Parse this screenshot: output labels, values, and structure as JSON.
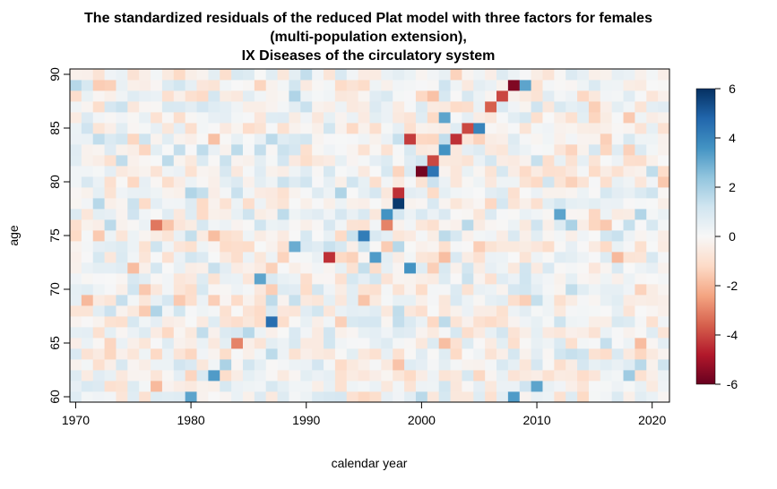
{
  "chart_data": {
    "type": "heatmap",
    "title_lines": [
      "The standardized residuals of the reduced Plat model with three factors for females",
      "(multi-population extension),",
      "IX Diseases of the circulatory system"
    ],
    "xlabel": "calendar year",
    "ylabel": "age",
    "x_range": [
      1970,
      2021
    ],
    "y_range": [
      60,
      90
    ],
    "xlim": [
      1969.5,
      2021.5
    ],
    "ylim": [
      59.5,
      90.5
    ],
    "x_ticks": [
      1970,
      1980,
      1990,
      2000,
      2010,
      2020
    ],
    "y_ticks": [
      60,
      65,
      70,
      75,
      80,
      85,
      90
    ],
    "x_tick_labels": [
      "1970",
      "1980",
      "1990",
      "2000",
      "2010",
      "2020"
    ],
    "y_tick_labels": [
      "60",
      "65",
      "70",
      "75",
      "80",
      "85",
      "90"
    ],
    "colorbar": {
      "range": [
        -6,
        6
      ],
      "ticks": [
        6,
        4,
        2,
        0,
        -2,
        -4,
        -6
      ],
      "tick_labels": [
        "6",
        "4",
        "2",
        "0",
        "-2",
        "-4",
        "-6"
      ],
      "palette": "RdBu (red = negative, blue = positive)"
    },
    "grid": false,
    "notable_cells": [
      {
        "year": 1987,
        "age": 67,
        "value": 4.6
      },
      {
        "year": 1986,
        "age": 71,
        "value": 3.2
      },
      {
        "year": 1989,
        "age": 74,
        "value": 3.0
      },
      {
        "year": 1992,
        "age": 73,
        "value": -4.4
      },
      {
        "year": 1995,
        "age": 75,
        "value": 4.2
      },
      {
        "year": 1996,
        "age": 73,
        "value": 3.4
      },
      {
        "year": 1997,
        "age": 77,
        "value": 3.6
      },
      {
        "year": 1997,
        "age": 76,
        "value": -3.0
      },
      {
        "year": 1998,
        "age": 78,
        "value": 5.8
      },
      {
        "year": 1998,
        "age": 79,
        "value": -4.4
      },
      {
        "year": 1999,
        "age": 72,
        "value": 3.6
      },
      {
        "year": 1999,
        "age": 84,
        "value": -4.2
      },
      {
        "year": 2000,
        "age": 81,
        "value": -5.8
      },
      {
        "year": 2001,
        "age": 81,
        "value": 4.4
      },
      {
        "year": 2001,
        "age": 82,
        "value": -4.0
      },
      {
        "year": 2002,
        "age": 83,
        "value": 3.6
      },
      {
        "year": 2002,
        "age": 86,
        "value": 3.2
      },
      {
        "year": 2003,
        "age": 84,
        "value": -4.4
      },
      {
        "year": 2004,
        "age": 85,
        "value": -4.0
      },
      {
        "year": 2005,
        "age": 85,
        "value": 4.0
      },
      {
        "year": 2006,
        "age": 87,
        "value": -3.6
      },
      {
        "year": 2007,
        "age": 88,
        "value": -4.0
      },
      {
        "year": 2008,
        "age": 89,
        "value": -5.6
      },
      {
        "year": 2008,
        "age": 60,
        "value": 3.4
      },
      {
        "year": 2009,
        "age": 89,
        "value": 3.2
      },
      {
        "year": 2010,
        "age": 61,
        "value": 3.2
      },
      {
        "year": 1982,
        "age": 62,
        "value": 3.4
      },
      {
        "year": 1980,
        "age": 60,
        "value": 3.2
      },
      {
        "year": 1977,
        "age": 76,
        "value": -3.2
      },
      {
        "year": 2012,
        "age": 77,
        "value": 3.2
      },
      {
        "year": 1984,
        "age": 65,
        "value": -3.0
      }
    ]
  }
}
